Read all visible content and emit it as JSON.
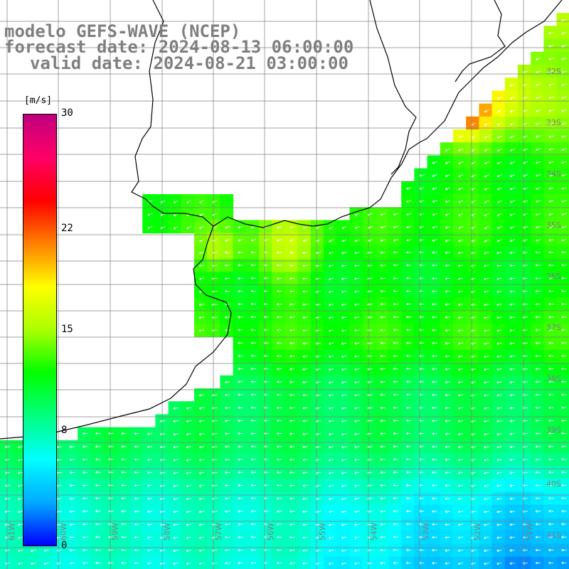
{
  "title": {
    "line1": "modelo GEFS-WAVE (NCEP)",
    "line2": "forecast date: 2024-08-13 06:00:00",
    "line3": "valid date: 2024-08-21 03:00:00"
  },
  "colorbar": {
    "units": "[m/s]",
    "ticks": [
      "30",
      "22",
      "15",
      "8",
      "0"
    ],
    "tick_values": [
      30,
      22,
      15,
      8,
      0
    ],
    "range": [
      0,
      30
    ],
    "colors": [
      "#0000ff",
      "#00aaff",
      "#00ffff",
      "#00ff80",
      "#00ff00",
      "#aaff00",
      "#ffff00",
      "#ff8000",
      "#ff0000",
      "#ff0066",
      "#c0007f"
    ]
  },
  "map": {
    "lat_labels": [
      "32S",
      "33S",
      "34S",
      "35S",
      "36S",
      "37S",
      "38S",
      "39S",
      "40S",
      "41S"
    ],
    "lon_labels": [
      "61W",
      "60W",
      "59W",
      "58W",
      "57W",
      "56W",
      "55W",
      "54W",
      "53W",
      "52W",
      "51W"
    ],
    "land_color": "#ffffff",
    "grid_color": "#808080",
    "arrow_color": "#ffffff"
  }
}
